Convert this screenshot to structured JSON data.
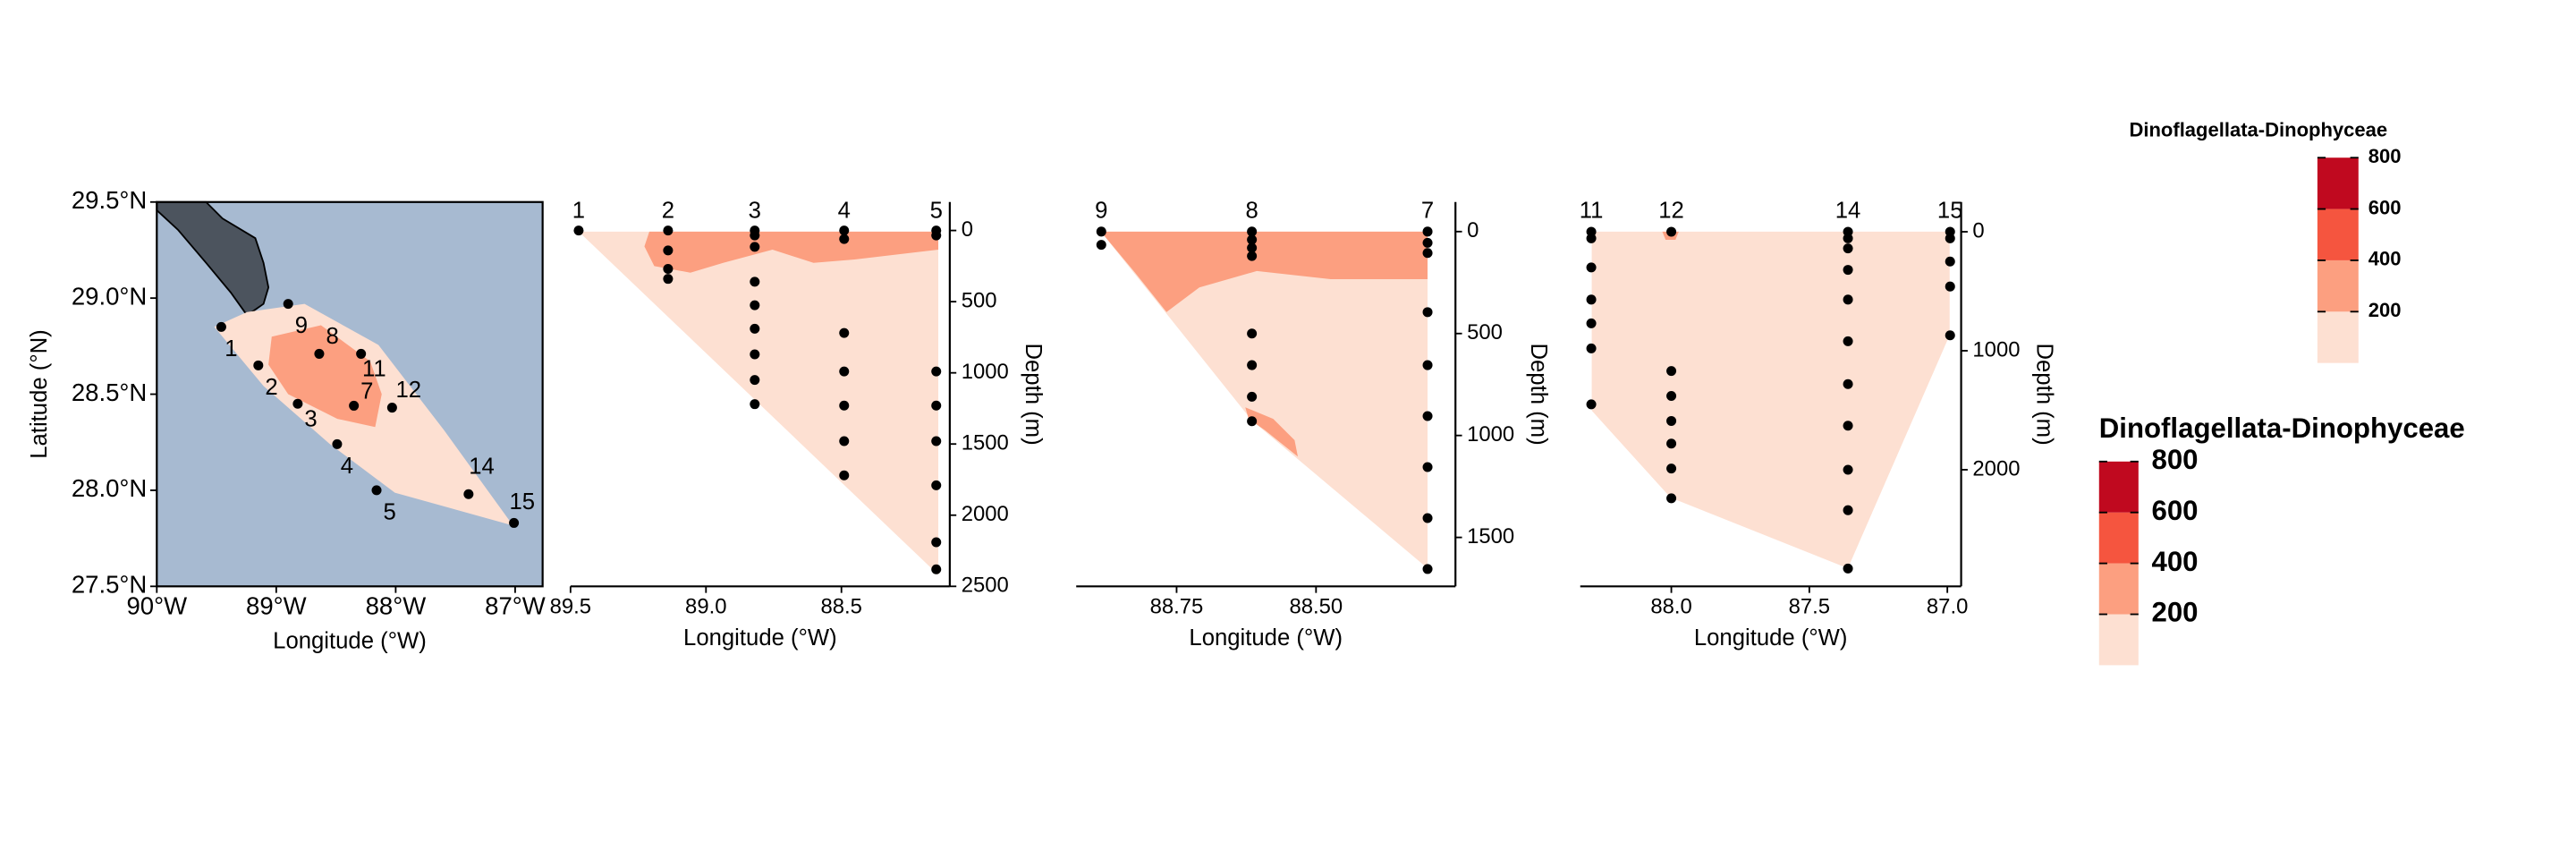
{
  "chart_data": [
    {
      "type": "map",
      "xlabel": "Longitude (°W)",
      "ylabel": "Latitude (°N)",
      "xlim": [
        -90,
        -86.77
      ],
      "ylim": [
        27.5,
        29.5
      ],
      "xticks": [
        {
          "value": -90,
          "label": "90°W"
        },
        {
          "value": -89,
          "label": "89°W"
        },
        {
          "value": -88,
          "label": "88°W"
        },
        {
          "value": -87,
          "label": "87°W"
        }
      ],
      "yticks": [
        {
          "value": 27.5,
          "label": "27.5°N"
        },
        {
          "value": 28,
          "label": "28.0°N"
        },
        {
          "value": 28.5,
          "label": "28.5°N"
        },
        {
          "value": 29,
          "label": "29.0°N"
        },
        {
          "value": 29.5,
          "label": "29.5°N"
        }
      ],
      "stations": {
        "labels": [
          "1",
          "2",
          "3",
          "4",
          "5",
          "7",
          "8",
          "9",
          "11",
          "12",
          "14",
          "15"
        ],
        "x": [
          -89.46,
          -89.15,
          -88.82,
          -88.49,
          -88.16,
          -88.35,
          -88.64,
          -88.9,
          -88.29,
          -88.03,
          -87.39,
          -87.01
        ],
        "y": [
          28.85,
          28.65,
          28.45,
          28.24,
          28.0,
          28.44,
          28.71,
          28.97,
          28.71,
          28.43,
          27.98,
          27.83
        ]
      }
    },
    {
      "type": "section",
      "xlabel": "Longitude (°W)",
      "ylabel": "Depth (m)",
      "xlim": [
        89.5,
        88.1
      ],
      "ylim": [
        -200,
        2500
      ],
      "xticks": [
        89.5,
        {
          "value": 89,
          "label": "89.0"
        },
        88.5
      ],
      "yticks": [
        0,
        500,
        1000,
        1500,
        2000,
        2500
      ],
      "stations": [
        {
          "name": "1",
          "x": 89.47,
          "depths": [
            0
          ]
        },
        {
          "name": "2",
          "x": 89.14,
          "depths": [
            0,
            140,
            270,
            340
          ]
        },
        {
          "name": "3",
          "x": 88.82,
          "depths": [
            0,
            35,
            115,
            360,
            525,
            690,
            870,
            1050,
            1220
          ]
        },
        {
          "name": "4",
          "x": 88.49,
          "depths": [
            0,
            60,
            720,
            990,
            1230,
            1480,
            1720
          ]
        },
        {
          "name": "5",
          "x": 88.15,
          "depths": [
            0,
            35,
            990,
            1230,
            1480,
            1790,
            2190,
            2380
          ]
        }
      ]
    },
    {
      "type": "section",
      "xlabel": "Longitude (°W)",
      "ylabel": "Depth (m)",
      "xlim": [
        88.93,
        88.25
      ],
      "ylim": [
        -145,
        1740
      ],
      "xticks": [
        88.75,
        {
          "value": 88.5,
          "label": "88.50"
        }
      ],
      "yticks": [
        0,
        500,
        1000,
        1500
      ],
      "stations": [
        {
          "name": "9",
          "x": 88.885,
          "depths": [
            0,
            65
          ]
        },
        {
          "name": "8",
          "x": 88.615,
          "depths": [
            0,
            40,
            80,
            120,
            500,
            655,
            810,
            930
          ]
        },
        {
          "name": "7",
          "x": 88.3,
          "depths": [
            0,
            55,
            105,
            395,
            655,
            905,
            1155,
            1405,
            1655
          ]
        }
      ]
    },
    {
      "type": "section",
      "xlabel": "Longitude (°W)",
      "ylabel": "Depth (m)",
      "xlim": [
        88.33,
        86.95
      ],
      "ylim": [
        -250,
        2980
      ],
      "xticks": [
        {
          "value": 88,
          "label": "88.0"
        },
        87.5,
        {
          "value": 87,
          "label": "87.0"
        }
      ],
      "yticks": [
        0,
        1000,
        2000
      ],
      "stations": [
        {
          "name": "11",
          "x": 88.29,
          "depths": [
            0,
            55,
            300,
            570,
            770,
            980,
            1450
          ]
        },
        {
          "name": "12",
          "x": 88.0,
          "depths": [
            0,
            1170,
            1380,
            1590,
            1780,
            1990,
            2240
          ]
        },
        {
          "name": "14",
          "x": 87.36,
          "depths": [
            0,
            55,
            140,
            320,
            570,
            920,
            1280,
            1630,
            2000,
            2340,
            2830
          ]
        },
        {
          "name": "15",
          "x": 86.99,
          "depths": [
            0,
            55,
            250,
            460,
            870
          ]
        }
      ]
    }
  ],
  "legends": [
    {
      "title": "Dinoflagellata-Dinophyceae",
      "limits": [
        0,
        800
      ],
      "breaks": [
        200,
        400,
        600,
        800
      ],
      "colors": [
        "#fde0d2",
        "#fc9f80",
        "#f5553f",
        "#c0091f"
      ]
    },
    {
      "title": "Dinoflagellata-Dinophyceae",
      "limits": [
        0,
        800
      ],
      "breaks": [
        200,
        400,
        600,
        800
      ],
      "colors": [
        "#fde0d2",
        "#fc9f80",
        "#f5553f",
        "#c0091f"
      ]
    }
  ]
}
